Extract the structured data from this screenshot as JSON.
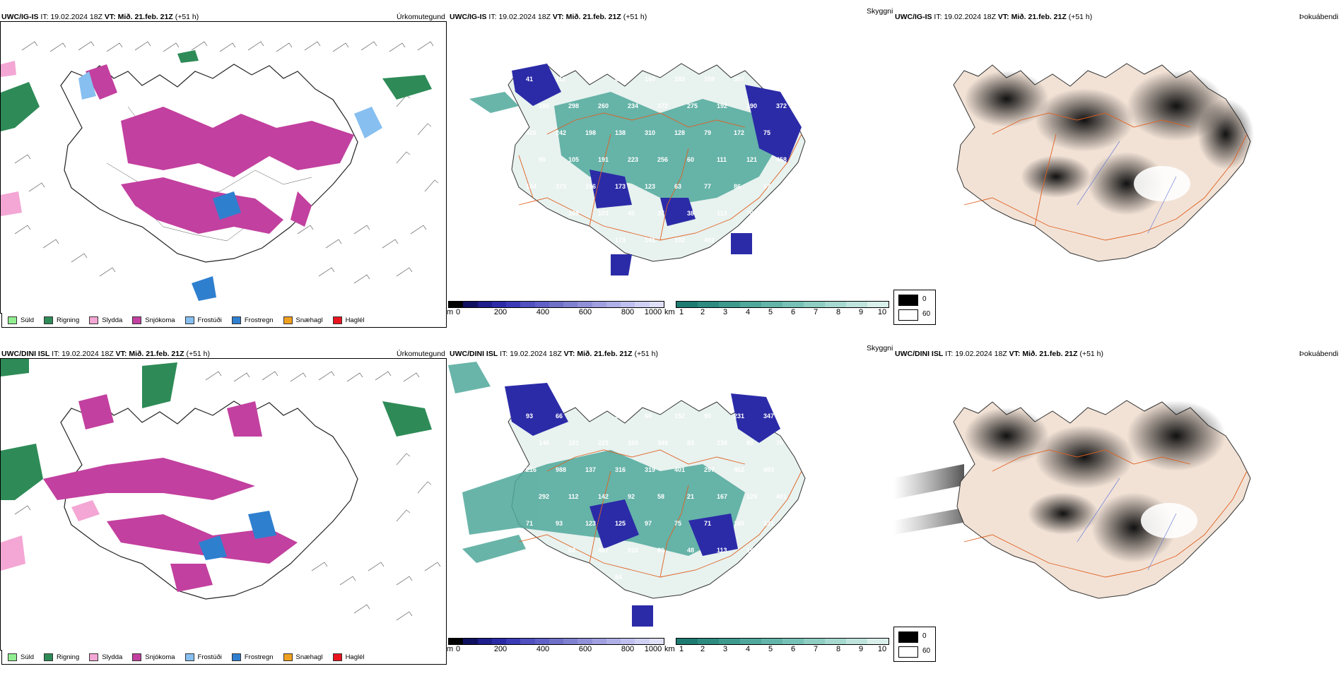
{
  "top": {
    "ptype": {
      "model": "UWC/IG-IS",
      "it_label": "IT:",
      "it": "19.02.2024 18Z",
      "vt_label": "VT:",
      "vt": "Mið. 21.feb. 21Z",
      "lead": "(+51 h)",
      "title": "Úrkomutegund"
    },
    "cloud": {
      "model": "UWC/IG-IS",
      "it_label": "IT:",
      "it": "19.02.2024 18Z",
      "vt_label": "VT:",
      "vt": "Mið. 21.feb. 21Z",
      "lead": "(+51 h)",
      "title": "Skyggni"
    },
    "fog": {
      "model": "UWC/IG-IS",
      "it_label": "IT:",
      "it": "19.02.2024 18Z",
      "vt_label": "VT:",
      "vt": "Mið. 21.feb. 21Z",
      "lead": "(+51 h)",
      "title": "Þokuábendi"
    },
    "cloud_labels": [
      "41",
      "112",
      "60",
      "69",
      "160",
      "183",
      "109",
      "307",
      "181",
      "166",
      "298",
      "260",
      "234",
      "372",
      "275",
      "192",
      "190",
      "372",
      "426",
      "242",
      "198",
      "138",
      "310",
      "128",
      "79",
      "172",
      "75",
      "90",
      "105",
      "191",
      "223",
      "256",
      "60",
      "111",
      "121",
      "458",
      "184",
      "373",
      "196",
      "173",
      "123",
      "63",
      "77",
      "86",
      "57",
      "75",
      "108",
      "103",
      "45",
      "37",
      "38",
      "113",
      "70",
      "50",
      "52",
      "131",
      "176",
      "173",
      "141",
      "102",
      "492"
    ]
  },
  "bottom": {
    "ptype": {
      "model": "UWC/DINI ISL",
      "it_label": "IT:",
      "it": "19.02.2024 18Z",
      "vt_label": "VT:",
      "vt": "Mið. 21.feb. 21Z",
      "lead": "(+51 h)",
      "title": "Úrkomutegund"
    },
    "cloud": {
      "model": "UWC/DINI ISL",
      "it_label": "IT:",
      "it": "19.02.2024 18Z",
      "vt_label": "VT:",
      "vt": "Mið. 21.feb. 21Z",
      "lead": "(+51 h)",
      "title": "Skyggni"
    },
    "fog": {
      "model": "UWC/DINI ISL",
      "it_label": "IT:",
      "it": "19.02.2024 18Z",
      "vt_label": "VT:",
      "vt": "Mið. 21.feb. 21Z",
      "lead": "(+51 h)",
      "title": "Þokuábendi"
    },
    "cloud_labels": [
      "93",
      "66",
      "42",
      "53",
      "60",
      "152",
      "90",
      "231",
      "347",
      "146",
      "181",
      "225",
      "160",
      "349",
      "83",
      "238",
      "80",
      "70",
      "216",
      "988",
      "137",
      "316",
      "319",
      "401",
      "297",
      "462",
      "493",
      "292",
      "112",
      "142",
      "92",
      "58",
      "21",
      "167",
      "129",
      "401",
      "71",
      "93",
      "123",
      "125",
      "97",
      "75",
      "71",
      "165",
      "131",
      "79",
      "63",
      "487",
      "916",
      "89",
      "48",
      "113",
      "153",
      "233",
      "109",
      "26",
      "66",
      "84"
    ]
  },
  "ptype_legend": [
    {
      "label": "Súld",
      "color": "#90ee90"
    },
    {
      "label": "Rigning",
      "color": "#2e8b57"
    },
    {
      "label": "Slydda",
      "color": "#f4a6d4"
    },
    {
      "label": "Snjókoma",
      "color": "#c2409f"
    },
    {
      "label": "Frostúði",
      "color": "#87bff0"
    },
    {
      "label": "Frostregn",
      "color": "#2f7fcf"
    },
    {
      "label": "Snæhagl",
      "color": "#f0a020"
    },
    {
      "label": "Haglél",
      "color": "#e8141e"
    }
  ],
  "cloudbase_scale": {
    "unit": "m",
    "ticks": [
      "0",
      "200",
      "400",
      "600",
      "800",
      "1000"
    ],
    "colors": [
      "#000000",
      "#101060",
      "#1e1e8c",
      "#2b2ba8",
      "#3b3bb8",
      "#5050c0",
      "#6060c8",
      "#7070c8",
      "#8080d0",
      "#9090d8",
      "#a0a0e0",
      "#b0b0e8",
      "#c0c0f0",
      "#d0d0f4",
      "#e0e0f8"
    ]
  },
  "visibility_scale": {
    "unit": "km",
    "ticks": [
      "1",
      "2",
      "3",
      "4",
      "5",
      "6",
      "7",
      "8",
      "9",
      "10"
    ],
    "colors": [
      "#1e7b72",
      "#2d8b80",
      "#3d9a8d",
      "#4fa89b",
      "#62b5a8",
      "#77c2b6",
      "#8ecec3",
      "#a6d9d0",
      "#bfe4dd",
      "#d9efea"
    ]
  },
  "fog_legend": [
    {
      "label": "0",
      "color": "#000000"
    },
    {
      "label": "60",
      "color": "#ffffff"
    }
  ]
}
